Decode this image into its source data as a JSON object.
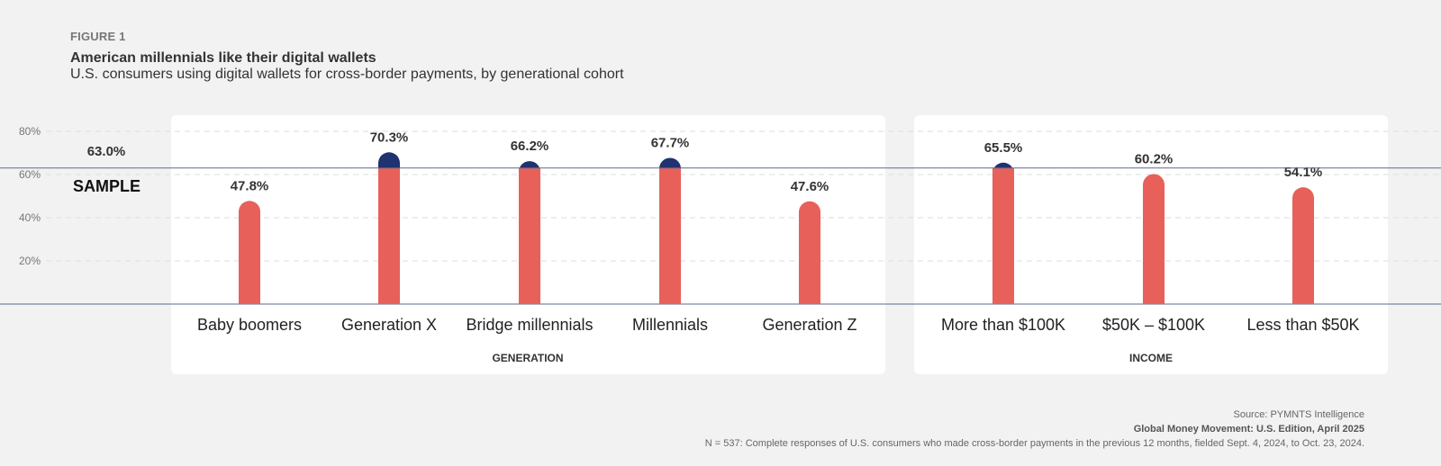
{
  "header": {
    "figure_label": "FIGURE 1",
    "title": "American millennials like their digital wallets",
    "subtitle": "U.S. consumers using digital wallets for cross-border payments, by generational cohort"
  },
  "footer": {
    "source": "Source: PYMNTS Intelligence",
    "report": "Global Money Movement: U.S. Edition, April 2025",
    "note": "N = 537: Complete responses of U.S. consumers who made cross-border payments in the previous 12 months, fielded Sept. 4, 2024, to Oct. 23, 2024."
  },
  "colors": {
    "bar": "#e8605a",
    "above_sample": "#1f3370",
    "sample_line": "#5a6b8c",
    "grid": "#dddddd"
  },
  "chart_data": {
    "type": "bar",
    "ylim": [
      0,
      80
    ],
    "yticks": [
      20,
      40,
      60,
      80
    ],
    "ytick_labels": [
      "20%",
      "40%",
      "60%",
      "80%"
    ],
    "grid": true,
    "reference_line": {
      "value": 63.0,
      "label": "SAMPLE",
      "value_label": "63.0%"
    },
    "groups": [
      {
        "name": "GENERATION",
        "categories": [
          "Baby boomers",
          "Generation X",
          "Bridge millennials",
          "Millennials",
          "Generation Z"
        ],
        "values": [
          47.8,
          70.3,
          66.2,
          67.7,
          47.6
        ],
        "value_labels": [
          "47.8%",
          "70.3%",
          "66.2%",
          "67.7%",
          "47.6%"
        ]
      },
      {
        "name": "INCOME",
        "categories": [
          "More than $100K",
          "$50K – $100K",
          "Less than $50K"
        ],
        "values": [
          65.5,
          60.2,
          54.1
        ],
        "value_labels": [
          "65.5%",
          "60.2%",
          "54.1%"
        ]
      }
    ]
  }
}
